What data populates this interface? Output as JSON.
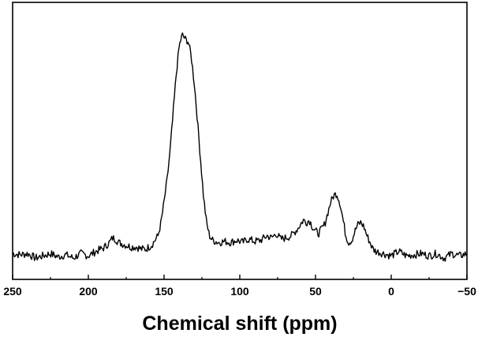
{
  "chart_data": {
    "type": "line",
    "title": "",
    "xlabel": "Chemical shift (ppm)",
    "ylabel": "",
    "xlim": [
      250,
      -50
    ],
    "x_reversed": true,
    "ylim": [
      0,
      1
    ],
    "grid": false,
    "legend": "none",
    "line_color": "#000000",
    "x_ticks": [
      250,
      200,
      150,
      100,
      50,
      0,
      -50
    ],
    "x_tick_labels": [
      "250",
      "200",
      "150",
      "100",
      "50",
      "0",
      "−50"
    ],
    "series": [
      {
        "x": [
          250,
          245,
          240,
          235,
          230,
          225,
          220,
          215,
          210,
          205,
          200,
          195,
          190,
          186,
          184,
          182,
          180,
          176,
          172,
          168,
          165,
          162,
          160,
          158,
          156,
          154,
          152,
          150,
          148,
          146,
          144,
          142,
          140,
          138,
          136,
          134,
          132,
          130,
          128,
          126,
          124,
          122,
          120,
          118,
          116,
          114,
          110,
          106,
          102,
          98,
          95,
          90,
          86,
          82,
          79,
          76,
          73,
          70,
          66,
          62,
          58,
          56,
          54,
          52,
          50,
          48,
          46,
          44,
          42,
          40,
          38,
          36,
          34,
          32,
          30,
          28,
          26,
          24,
          22,
          20,
          18,
          16,
          14,
          12,
          10,
          5,
          0,
          -5,
          -10,
          -15,
          -20,
          -25,
          -30,
          -35,
          -40,
          -45,
          -50
        ],
        "y": [
          0.02,
          0.015,
          0.02,
          0.0,
          0.01,
          0.02,
          0.005,
          0.015,
          0.0,
          0.02,
          0.01,
          0.03,
          0.045,
          0.07,
          0.09,
          0.085,
          0.07,
          0.06,
          0.05,
          0.05,
          0.04,
          0.04,
          0.05,
          0.06,
          0.08,
          0.1,
          0.16,
          0.25,
          0.35,
          0.48,
          0.65,
          0.82,
          0.95,
          1.0,
          0.98,
          0.97,
          0.9,
          0.78,
          0.62,
          0.45,
          0.28,
          0.16,
          0.1,
          0.08,
          0.075,
          0.07,
          0.075,
          0.07,
          0.08,
          0.07,
          0.085,
          0.075,
          0.08,
          0.1,
          0.09,
          0.11,
          0.085,
          0.09,
          0.1,
          0.13,
          0.17,
          0.16,
          0.17,
          0.14,
          0.12,
          0.11,
          0.13,
          0.15,
          0.2,
          0.25,
          0.28,
          0.29,
          0.25,
          0.18,
          0.1,
          0.07,
          0.08,
          0.12,
          0.15,
          0.16,
          0.14,
          0.1,
          0.07,
          0.04,
          0.03,
          0.02,
          0.01,
          0.03,
          0.01,
          0.015,
          0.02,
          0.01,
          0.02,
          0.0,
          0.02,
          0.01,
          0.02
        ]
      }
    ]
  }
}
